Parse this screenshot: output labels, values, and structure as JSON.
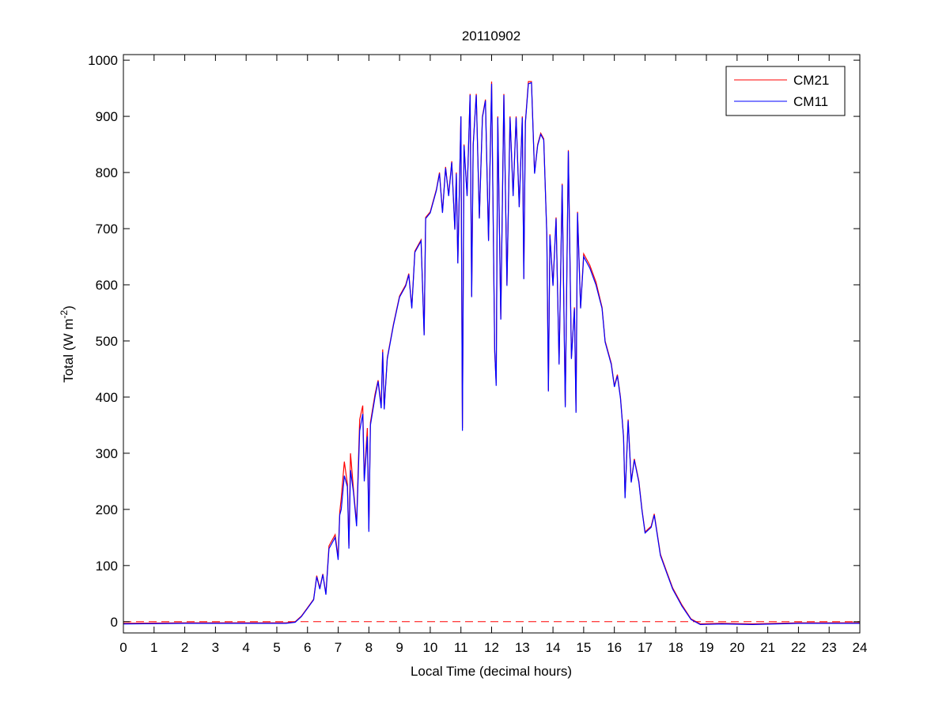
{
  "chart_data": {
    "type": "line",
    "title": "20110902",
    "xlabel": "Local Time (decimal hours)",
    "ylabel": "Total (W m",
    "ylabel_sup": "-2",
    "ylabel_end": ")",
    "xlim": [
      0,
      24
    ],
    "ylim": [
      -20,
      1010
    ],
    "xticks": [
      0,
      1,
      2,
      3,
      4,
      5,
      6,
      7,
      8,
      9,
      10,
      11,
      12,
      13,
      14,
      15,
      16,
      17,
      18,
      19,
      20,
      21,
      22,
      23,
      24
    ],
    "yticks": [
      0,
      100,
      200,
      300,
      400,
      500,
      600,
      700,
      800,
      900,
      1000
    ],
    "grid": false,
    "legend_position": "top-right",
    "reference_line": {
      "y": 0,
      "style": "dashed",
      "color": "#ff0000"
    },
    "series": [
      {
        "name": "CM21",
        "color": "#ff0000",
        "points": [
          [
            0,
            -3
          ],
          [
            2,
            -2
          ],
          [
            4,
            -2
          ],
          [
            5.3,
            -2
          ],
          [
            5.6,
            0
          ],
          [
            5.8,
            10
          ],
          [
            6,
            25
          ],
          [
            6.2,
            40
          ],
          [
            6.3,
            82
          ],
          [
            6.4,
            60
          ],
          [
            6.5,
            85
          ],
          [
            6.6,
            50
          ],
          [
            6.7,
            135
          ],
          [
            6.9,
            155
          ],
          [
            7,
            115
          ],
          [
            7.05,
            195
          ],
          [
            7.1,
            220
          ],
          [
            7.2,
            285
          ],
          [
            7.3,
            245
          ],
          [
            7.35,
            135
          ],
          [
            7.4,
            300
          ],
          [
            7.5,
            235
          ],
          [
            7.6,
            175
          ],
          [
            7.7,
            360
          ],
          [
            7.8,
            385
          ],
          [
            7.85,
            255
          ],
          [
            7.95,
            345
          ],
          [
            8,
            165
          ],
          [
            8.05,
            355
          ],
          [
            8.2,
            405
          ],
          [
            8.3,
            430
          ],
          [
            8.4,
            385
          ],
          [
            8.45,
            485
          ],
          [
            8.5,
            380
          ],
          [
            8.6,
            470
          ],
          [
            8.8,
            530
          ],
          [
            9,
            580
          ],
          [
            9.2,
            600
          ],
          [
            9.3,
            620
          ],
          [
            9.4,
            560
          ],
          [
            9.5,
            660
          ],
          [
            9.7,
            680
          ],
          [
            9.8,
            512
          ],
          [
            9.85,
            720
          ],
          [
            10,
            730
          ],
          [
            10.2,
            770
          ],
          [
            10.3,
            800
          ],
          [
            10.4,
            730
          ],
          [
            10.5,
            810
          ],
          [
            10.6,
            760
          ],
          [
            10.7,
            820
          ],
          [
            10.8,
            700
          ],
          [
            10.85,
            800
          ],
          [
            10.9,
            640
          ],
          [
            11,
            900
          ],
          [
            11.05,
            345
          ],
          [
            11.1,
            850
          ],
          [
            11.2,
            760
          ],
          [
            11.3,
            940
          ],
          [
            11.35,
            580
          ],
          [
            11.4,
            850
          ],
          [
            11.5,
            940
          ],
          [
            11.6,
            720
          ],
          [
            11.7,
            900
          ],
          [
            11.8,
            930
          ],
          [
            11.9,
            680
          ],
          [
            12,
            962
          ],
          [
            12.1,
            480
          ],
          [
            12.15,
            425
          ],
          [
            12.2,
            900
          ],
          [
            12.3,
            540
          ],
          [
            12.4,
            940
          ],
          [
            12.5,
            600
          ],
          [
            12.6,
            900
          ],
          [
            12.7,
            760
          ],
          [
            12.8,
            900
          ],
          [
            12.9,
            740
          ],
          [
            13,
            900
          ],
          [
            13.05,
            612
          ],
          [
            13.1,
            890
          ],
          [
            13.2,
            962
          ],
          [
            13.3,
            962
          ],
          [
            13.4,
            800
          ],
          [
            13.5,
            850
          ],
          [
            13.6,
            870
          ],
          [
            13.7,
            860
          ],
          [
            13.8,
            690
          ],
          [
            13.85,
            412
          ],
          [
            13.9,
            690
          ],
          [
            14,
            600
          ],
          [
            14.1,
            720
          ],
          [
            14.2,
            460
          ],
          [
            14.3,
            780
          ],
          [
            14.4,
            385
          ],
          [
            14.5,
            840
          ],
          [
            14.6,
            470
          ],
          [
            14.7,
            560
          ],
          [
            14.75,
            375
          ],
          [
            14.8,
            730
          ],
          [
            14.9,
            560
          ],
          [
            15,
            655
          ],
          [
            15.2,
            635
          ],
          [
            15.4,
            605
          ],
          [
            15.6,
            560
          ],
          [
            15.7,
            500
          ],
          [
            15.9,
            460
          ],
          [
            16,
            420
          ],
          [
            16.1,
            440
          ],
          [
            16.2,
            400
          ],
          [
            16.3,
            330
          ],
          [
            16.35,
            222
          ],
          [
            16.45,
            360
          ],
          [
            16.55,
            250
          ],
          [
            16.65,
            290
          ],
          [
            16.8,
            250
          ],
          [
            16.9,
            200
          ],
          [
            17,
            160
          ],
          [
            17.2,
            170
          ],
          [
            17.3,
            192
          ],
          [
            17.5,
            120
          ],
          [
            17.7,
            90
          ],
          [
            17.9,
            60
          ],
          [
            18.2,
            30
          ],
          [
            18.5,
            5
          ],
          [
            18.8,
            -4
          ],
          [
            19.5,
            -3
          ],
          [
            20.5,
            -4
          ],
          [
            22,
            -2
          ],
          [
            24,
            -2
          ]
        ]
      },
      {
        "name": "CM11",
        "color": "#0000ff",
        "points": [
          [
            0,
            -4
          ],
          [
            2,
            -3
          ],
          [
            4,
            -3
          ],
          [
            5.3,
            -3
          ],
          [
            5.6,
            -1
          ],
          [
            5.8,
            9
          ],
          [
            6,
            24
          ],
          [
            6.2,
            39
          ],
          [
            6.3,
            80
          ],
          [
            6.4,
            58
          ],
          [
            6.5,
            84
          ],
          [
            6.6,
            48
          ],
          [
            6.7,
            130
          ],
          [
            6.9,
            150
          ],
          [
            7,
            110
          ],
          [
            7.05,
            190
          ],
          [
            7.1,
            200
          ],
          [
            7.2,
            260
          ],
          [
            7.3,
            240
          ],
          [
            7.35,
            130
          ],
          [
            7.4,
            270
          ],
          [
            7.5,
            230
          ],
          [
            7.6,
            170
          ],
          [
            7.7,
            340
          ],
          [
            7.8,
            370
          ],
          [
            7.85,
            250
          ],
          [
            7.95,
            330
          ],
          [
            8,
            160
          ],
          [
            8.05,
            350
          ],
          [
            8.2,
            400
          ],
          [
            8.3,
            428
          ],
          [
            8.4,
            380
          ],
          [
            8.45,
            480
          ],
          [
            8.5,
            378
          ],
          [
            8.6,
            468
          ],
          [
            8.8,
            528
          ],
          [
            9,
            578
          ],
          [
            9.2,
            598
          ],
          [
            9.3,
            618
          ],
          [
            9.4,
            558
          ],
          [
            9.5,
            658
          ],
          [
            9.7,
            678
          ],
          [
            9.8,
            510
          ],
          [
            9.85,
            718
          ],
          [
            10,
            728
          ],
          [
            10.2,
            768
          ],
          [
            10.3,
            798
          ],
          [
            10.4,
            728
          ],
          [
            10.5,
            808
          ],
          [
            10.6,
            758
          ],
          [
            10.7,
            818
          ],
          [
            10.8,
            698
          ],
          [
            10.85,
            798
          ],
          [
            10.9,
            638
          ],
          [
            11,
            900
          ],
          [
            11.05,
            340
          ],
          [
            11.1,
            848
          ],
          [
            11.2,
            758
          ],
          [
            11.3,
            938
          ],
          [
            11.35,
            578
          ],
          [
            11.4,
            848
          ],
          [
            11.5,
            938
          ],
          [
            11.6,
            718
          ],
          [
            11.7,
            898
          ],
          [
            11.8,
            928
          ],
          [
            11.9,
            678
          ],
          [
            12,
            958
          ],
          [
            12.1,
            485
          ],
          [
            12.15,
            420
          ],
          [
            12.2,
            898
          ],
          [
            12.3,
            538
          ],
          [
            12.4,
            938
          ],
          [
            12.5,
            598
          ],
          [
            12.6,
            898
          ],
          [
            12.7,
            758
          ],
          [
            12.8,
            898
          ],
          [
            12.9,
            738
          ],
          [
            13,
            898
          ],
          [
            13.05,
            610
          ],
          [
            13.1,
            888
          ],
          [
            13.2,
            958
          ],
          [
            13.3,
            960
          ],
          [
            13.4,
            798
          ],
          [
            13.5,
            848
          ],
          [
            13.6,
            868
          ],
          [
            13.7,
            858
          ],
          [
            13.8,
            688
          ],
          [
            13.85,
            410
          ],
          [
            13.9,
            688
          ],
          [
            14,
            598
          ],
          [
            14.1,
            718
          ],
          [
            14.2,
            458
          ],
          [
            14.3,
            778
          ],
          [
            14.4,
            382
          ],
          [
            14.5,
            838
          ],
          [
            14.6,
            468
          ],
          [
            14.7,
            558
          ],
          [
            14.75,
            372
          ],
          [
            14.8,
            728
          ],
          [
            14.9,
            558
          ],
          [
            15,
            650
          ],
          [
            15.2,
            630
          ],
          [
            15.4,
            600
          ],
          [
            15.6,
            558
          ],
          [
            15.7,
            498
          ],
          [
            15.9,
            458
          ],
          [
            16,
            418
          ],
          [
            16.1,
            438
          ],
          [
            16.2,
            398
          ],
          [
            16.3,
            328
          ],
          [
            16.35,
            220
          ],
          [
            16.45,
            358
          ],
          [
            16.55,
            248
          ],
          [
            16.65,
            288
          ],
          [
            16.8,
            248
          ],
          [
            16.9,
            198
          ],
          [
            17,
            158
          ],
          [
            17.2,
            168
          ],
          [
            17.3,
            190
          ],
          [
            17.5,
            118
          ],
          [
            17.7,
            88
          ],
          [
            17.9,
            58
          ],
          [
            18.2,
            28
          ],
          [
            18.5,
            4
          ],
          [
            18.8,
            -5
          ],
          [
            19.5,
            -4
          ],
          [
            20.5,
            -5
          ],
          [
            22,
            -3
          ],
          [
            24,
            -3
          ]
        ]
      }
    ]
  }
}
